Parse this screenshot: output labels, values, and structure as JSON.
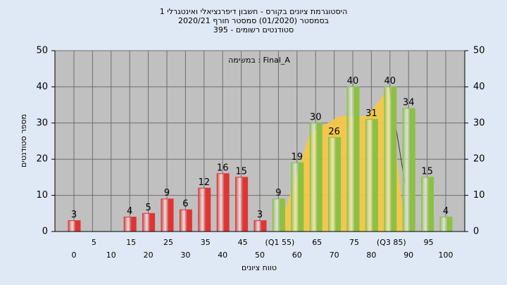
{
  "chart_data": {
    "type": "bar",
    "title": "היסטוגרמת ציונים בקורס - חשבון דיפרנציאלי ואינטגרלי 1",
    "subtitle": "בסמסטר  (01/2020)  סמסטר חורף 2020/21",
    "subtitle2": "סטודנטים רשומים - 395",
    "annotation": "במשימה : Final_A",
    "x_label": "טווח ציונים",
    "y_label": "מספר סטודנטים",
    "categories": [
      "0",
      "5",
      "10",
      "15",
      "20",
      "25",
      "30",
      "35",
      "40",
      "45",
      "50",
      "(Q1 55)",
      "60",
      "65",
      "70",
      "75",
      "80",
      "(Q3 85)",
      "90",
      "95",
      "100"
    ],
    "values": [
      3,
      null,
      null,
      4,
      5,
      9,
      6,
      12,
      16,
      15,
      3,
      9,
      19,
      30,
      26,
      40,
      31,
      40,
      34,
      15,
      4
    ],
    "colors": [
      "#e03434",
      "#e03434",
      "#e03434",
      "#e03434",
      "#e03434",
      "#e03434",
      "#e03434",
      "#e03434",
      "#e03434",
      "#e03434",
      "#e03434",
      "#8cc043",
      "#8cc043",
      "#8cc043",
      "#8cc043",
      "#8cc043",
      "#8cc043",
      "#8cc043",
      "#8cc043",
      "#8cc043",
      "#8cc043"
    ],
    "ylim": [
      0,
      50
    ],
    "yticks": [
      0,
      10,
      20,
      30,
      40,
      50
    ],
    "y2lim": [
      0,
      50
    ],
    "y2ticks": [
      0,
      10,
      20,
      30,
      40,
      50
    ],
    "grid": true
  }
}
